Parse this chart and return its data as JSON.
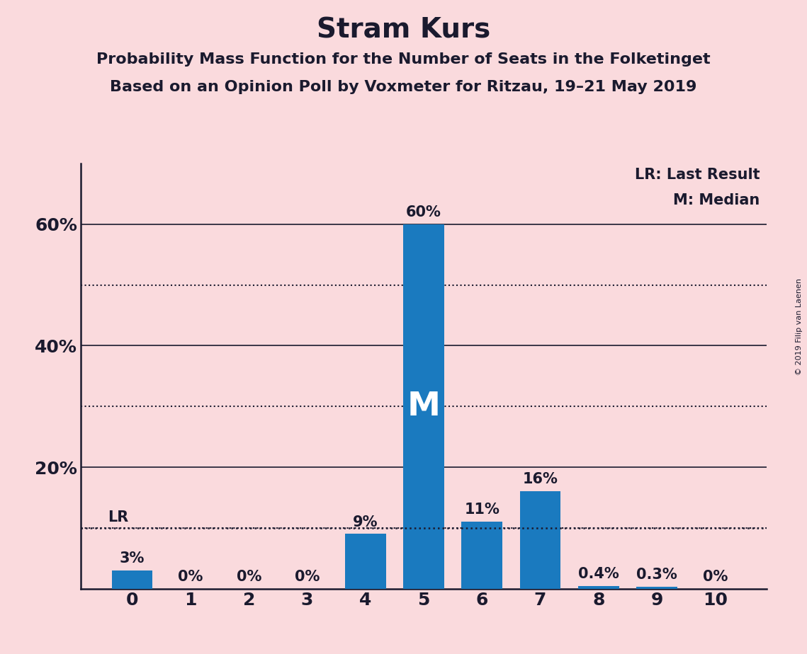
{
  "title": "Stram Kurs",
  "subtitle1": "Probability Mass Function for the Number of Seats in the Folketinget",
  "subtitle2": "Based on an Opinion Poll by Voxmeter for Ritzau, 19–21 May 2019",
  "copyright": "© 2019 Filip van Laenen",
  "categories": [
    0,
    1,
    2,
    3,
    4,
    5,
    6,
    7,
    8,
    9,
    10
  ],
  "values": [
    3.0,
    0.0,
    0.0,
    0.0,
    9.0,
    60.0,
    11.0,
    16.0,
    0.4,
    0.3,
    0.0
  ],
  "bar_color": "#1a7abf",
  "background_color": "#fadadd",
  "label_values": [
    "3%",
    "0%",
    "0%",
    "0%",
    "9%",
    "60%",
    "11%",
    "16%",
    "0.4%",
    "0.3%",
    "0%"
  ],
  "median_seat": 5,
  "lr_seat": 0,
  "lr_value": 10.0,
  "ylim": [
    0,
    70
  ],
  "yticks": [
    0,
    20,
    40,
    60
  ],
  "ytick_labels": [
    "",
    "20%",
    "40%",
    "60%"
  ],
  "dotted_yticks": [
    10,
    30,
    50
  ],
  "solid_yticks": [
    20,
    40,
    60
  ],
  "legend_lr": "LR: Last Result",
  "legend_m": "M: Median",
  "title_fontsize": 28,
  "subtitle_fontsize": 16,
  "label_fontsize": 15,
  "axis_fontsize": 18,
  "legend_fontsize": 15,
  "copyright_fontsize": 8
}
